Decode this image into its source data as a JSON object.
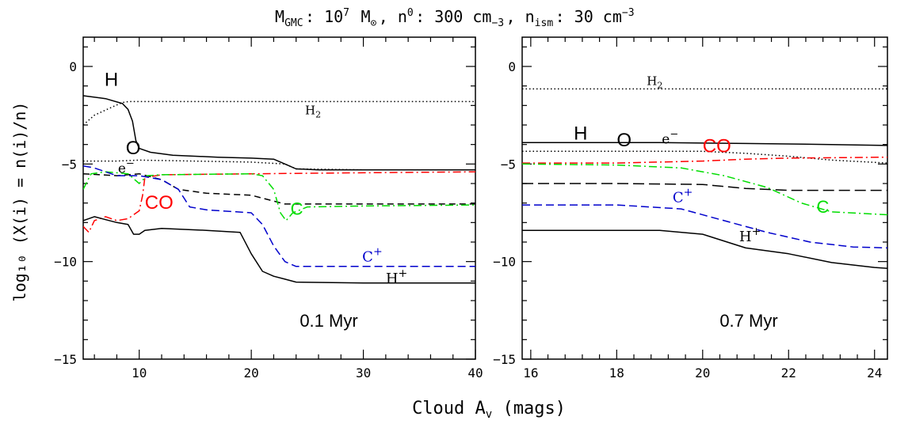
{
  "figure": {
    "title_parts": [
      "M",
      "GMC",
      ": 10",
      "7",
      " M",
      "⊙",
      ", n",
      "0",
      ": 300 cm",
      "−3",
      ", n",
      "ism",
      ": 30 cm",
      "−3"
    ],
    "ylabel": "log₁₀ (X(i) = n(i)/n)",
    "xlabel_parts": [
      "Cloud A",
      "v",
      " (mags)"
    ]
  },
  "colors": {
    "black": "#000000",
    "red": "#ff0000",
    "green": "#00dd00",
    "blue": "#0000cc"
  },
  "chart_data": [
    {
      "type": "line",
      "panel_label": "0.1 Myr",
      "xlim": [
        5,
        40
      ],
      "ylim": [
        -15,
        1.5
      ],
      "x_ticks": [
        10,
        20,
        30,
        40
      ],
      "y_ticks": [
        0,
        -5,
        -10,
        -15
      ],
      "x_tick_labels": [
        "10",
        "20",
        "30",
        "40"
      ],
      "y_tick_labels": [
        "0",
        "−5",
        "−10",
        "−15"
      ],
      "series": [
        {
          "name": "H",
          "color": "black",
          "dash": "solid",
          "points": [
            [
              5,
              -1.5
            ],
            [
              7,
              -1.65
            ],
            [
              8.5,
              -1.9
            ],
            [
              9,
              -2.2
            ],
            [
              9.4,
              -2.8
            ],
            [
              9.7,
              -3.8
            ],
            [
              10,
              -4.2
            ],
            [
              11,
              -4.4
            ],
            [
              13,
              -4.55
            ],
            [
              17,
              -4.65
            ],
            [
              20,
              -4.7
            ],
            [
              22,
              -4.75
            ],
            [
              23,
              -5.0
            ],
            [
              24,
              -5.25
            ],
            [
              26,
              -5.3
            ],
            [
              40,
              -5.3
            ]
          ]
        },
        {
          "name": "H₂",
          "color": "black",
          "dash": "1.5 3",
          "points": [
            [
              5,
              -3.0
            ],
            [
              6,
              -2.5
            ],
            [
              7.5,
              -2.1
            ],
            [
              8.5,
              -1.85
            ],
            [
              9,
              -1.8
            ],
            [
              12,
              -1.8
            ],
            [
              20,
              -1.8
            ],
            [
              30,
              -1.8
            ],
            [
              40,
              -1.8
            ]
          ]
        },
        {
          "name": "e⁻",
          "color": "black",
          "dash": "1.5 3",
          "points": [
            [
              5,
              -4.85
            ],
            [
              8,
              -4.85
            ],
            [
              10,
              -4.8
            ],
            [
              20,
              -4.9
            ],
            [
              23,
              -5.0
            ],
            [
              24,
              -5.25
            ],
            [
              30,
              -5.3
            ],
            [
              40,
              -5.3
            ]
          ]
        },
        {
          "name": "O",
          "color": "black",
          "dash": "8 5",
          "points": [
            [
              5,
              -5.5
            ],
            [
              8,
              -5.6
            ],
            [
              10,
              -5.5
            ],
            [
              12,
              -5.8
            ],
            [
              13.5,
              -6.3
            ],
            [
              16,
              -6.5
            ],
            [
              20,
              -6.6
            ],
            [
              22,
              -6.9
            ],
            [
              23,
              -7.05
            ],
            [
              26,
              -7.05
            ],
            [
              40,
              -7.05
            ]
          ]
        },
        {
          "name": "CO",
          "color": "red",
          "dash": "10 4 2 4",
          "points": [
            [
              5,
              -8.2
            ],
            [
              5.5,
              -8.5
            ],
            [
              6,
              -7.9
            ],
            [
              7,
              -7.7
            ],
            [
              8,
              -7.9
            ],
            [
              9,
              -7.8
            ],
            [
              10,
              -7.4
            ],
            [
              10.3,
              -6.6
            ],
            [
              10.5,
              -5.7
            ],
            [
              12,
              -5.55
            ],
            [
              20,
              -5.5
            ],
            [
              30,
              -5.45
            ],
            [
              40,
              -5.4
            ]
          ]
        },
        {
          "name": "C",
          "color": "green",
          "dash": "10 4 2 4",
          "points": [
            [
              5,
              -6.3
            ],
            [
              5.7,
              -5.5
            ],
            [
              7,
              -5.4
            ],
            [
              9,
              -5.5
            ],
            [
              10,
              -6.0
            ],
            [
              10.7,
              -5.6
            ],
            [
              12,
              -5.55
            ],
            [
              20,
              -5.5
            ],
            [
              21,
              -5.6
            ],
            [
              22,
              -6.3
            ],
            [
              22.6,
              -7.5
            ],
            [
              23.1,
              -7.9
            ],
            [
              23.7,
              -7.5
            ],
            [
              25,
              -7.2
            ],
            [
              30,
              -7.15
            ],
            [
              40,
              -7.1
            ]
          ]
        },
        {
          "name": "C⁺",
          "color": "blue",
          "dash": "10 5",
          "points": [
            [
              5,
              -5.1
            ],
            [
              6,
              -5.2
            ],
            [
              8,
              -5.6
            ],
            [
              10,
              -5.6
            ],
            [
              12,
              -5.8
            ],
            [
              13.5,
              -6.3
            ],
            [
              14.5,
              -7.2
            ],
            [
              16,
              -7.35
            ],
            [
              20,
              -7.5
            ],
            [
              21,
              -8.1
            ],
            [
              22,
              -9.2
            ],
            [
              23,
              -10.0
            ],
            [
              24,
              -10.25
            ],
            [
              30,
              -10.25
            ],
            [
              40,
              -10.25
            ]
          ]
        },
        {
          "name": "H⁺",
          "color": "black",
          "dash": "solid",
          "points": [
            [
              5,
              -7.9
            ],
            [
              6,
              -7.7
            ],
            [
              8,
              -8.0
            ],
            [
              9,
              -8.1
            ],
            [
              9.5,
              -8.6
            ],
            [
              10,
              -8.6
            ],
            [
              10.5,
              -8.4
            ],
            [
              12,
              -8.3
            ],
            [
              16,
              -8.4
            ],
            [
              19,
              -8.5
            ],
            [
              20,
              -9.6
            ],
            [
              21,
              -10.5
            ],
            [
              22,
              -10.75
            ],
            [
              23,
              -10.9
            ],
            [
              24,
              -11.05
            ],
            [
              30,
              -11.1
            ],
            [
              40,
              -11.1
            ]
          ]
        }
      ],
      "annotations": [
        {
          "text": "H",
          "x": 6.9,
          "y": -1.0,
          "color": "black",
          "size": 24,
          "font": "sans"
        },
        {
          "text": "H",
          "x": 24.8,
          "y": -2.45,
          "color": "black",
          "size": 15,
          "font": "serif",
          "sub": "2"
        },
        {
          "text": "O",
          "x": 8.8,
          "y": -4.5,
          "color": "black",
          "size": 24,
          "font": "sans"
        },
        {
          "text": "e",
          "x": 8.1,
          "y": -5.45,
          "color": "black",
          "size": 17,
          "font": "serif",
          "sup": "−"
        },
        {
          "text": "CO",
          "x": 10.5,
          "y": -7.3,
          "color": "red",
          "size": 24,
          "font": "sans"
        },
        {
          "text": "C",
          "x": 23.5,
          "y": -7.6,
          "color": "green",
          "size": 22,
          "font": "sans"
        },
        {
          "text": "C",
          "x": 29.9,
          "y": -10.0,
          "color": "blue",
          "size": 18,
          "font": "serif",
          "sup": "+"
        },
        {
          "text": "H",
          "x": 32.0,
          "y": -11.1,
          "color": "black",
          "size": 18,
          "font": "serif",
          "sup": "+"
        }
      ]
    },
    {
      "type": "line",
      "panel_label": "0.7 Myr",
      "xlim": [
        15.8,
        24.3
      ],
      "ylim": [
        -15,
        1.5
      ],
      "x_ticks": [
        16,
        18,
        20,
        22,
        24
      ],
      "y_ticks": [
        0,
        -5,
        -10,
        -15
      ],
      "x_tick_labels": [
        "16",
        "18",
        "20",
        "22",
        "24"
      ],
      "y_tick_labels": [
        "0",
        "−5",
        "−10",
        "−15"
      ],
      "series": [
        {
          "name": "H₂",
          "color": "black",
          "dash": "1.5 3",
          "points": [
            [
              15.8,
              -1.15
            ],
            [
              20,
              -1.15
            ],
            [
              24.3,
              -1.15
            ]
          ]
        },
        {
          "name": "H",
          "color": "black",
          "dash": "solid",
          "points": [
            [
              15.8,
              -3.9
            ],
            [
              19,
              -3.9
            ],
            [
              21,
              -3.95
            ],
            [
              23,
              -4.0
            ],
            [
              24.3,
              -4.05
            ]
          ]
        },
        {
          "name": "e⁻",
          "color": "black",
          "dash": "1.5 3",
          "points": [
            [
              15.8,
              -4.35
            ],
            [
              20,
              -4.35
            ],
            [
              21,
              -4.45
            ],
            [
              22,
              -4.6
            ],
            [
              23,
              -4.8
            ],
            [
              24.3,
              -4.95
            ]
          ]
        },
        {
          "name": "CO",
          "color": "red",
          "dash": "10 4 2 4",
          "points": [
            [
              15.8,
              -4.95
            ],
            [
              18,
              -4.95
            ],
            [
              20,
              -4.85
            ],
            [
              21,
              -4.75
            ],
            [
              22,
              -4.7
            ],
            [
              24.3,
              -4.65
            ]
          ]
        },
        {
          "name": "C",
          "color": "green",
          "dash": "10 4 2 4",
          "points": [
            [
              15.8,
              -5.0
            ],
            [
              18,
              -5.05
            ],
            [
              19.5,
              -5.2
            ],
            [
              20.5,
              -5.6
            ],
            [
              21.5,
              -6.2
            ],
            [
              22.3,
              -7.0
            ],
            [
              23,
              -7.45
            ],
            [
              24.3,
              -7.6
            ]
          ]
        },
        {
          "name": "O",
          "color": "black",
          "dash": "14 6",
          "points": [
            [
              15.8,
              -6.0
            ],
            [
              18,
              -6.0
            ],
            [
              20,
              -6.05
            ],
            [
              21,
              -6.25
            ],
            [
              22,
              -6.35
            ],
            [
              24.3,
              -6.35
            ]
          ]
        },
        {
          "name": "C⁺",
          "color": "blue",
          "dash": "10 5",
          "points": [
            [
              15.8,
              -7.1
            ],
            [
              18,
              -7.1
            ],
            [
              19.5,
              -7.3
            ],
            [
              20.5,
              -7.9
            ],
            [
              21.5,
              -8.5
            ],
            [
              22.5,
              -9.0
            ],
            [
              23.5,
              -9.25
            ],
            [
              24.3,
              -9.3
            ]
          ]
        },
        {
          "name": "H⁺",
          "color": "black",
          "dash": "solid",
          "points": [
            [
              15.8,
              -8.4
            ],
            [
              19,
              -8.4
            ],
            [
              20,
              -8.6
            ],
            [
              21,
              -9.3
            ],
            [
              22,
              -9.6
            ],
            [
              23,
              -10.05
            ],
            [
              24,
              -10.3
            ],
            [
              24.3,
              -10.35
            ]
          ]
        }
      ],
      "annotations": [
        {
          "text": "H",
          "x": 18.7,
          "y": -0.95,
          "color": "black",
          "size": 15,
          "font": "serif",
          "sub": "2"
        },
        {
          "text": "H",
          "x": 17.0,
          "y": -3.75,
          "color": "black",
          "size": 24,
          "font": "sans"
        },
        {
          "text": "O",
          "x": 18.0,
          "y": -4.1,
          "color": "black",
          "size": 24,
          "font": "sans"
        },
        {
          "text": "e",
          "x": 19.05,
          "y": -3.95,
          "color": "black",
          "size": 17,
          "font": "serif",
          "sup": "−"
        },
        {
          "text": "CO",
          "x": 20.0,
          "y": -4.4,
          "color": "red",
          "size": 24,
          "font": "sans"
        },
        {
          "text": "C",
          "x": 19.3,
          "y": -6.95,
          "color": "blue",
          "size": 18,
          "font": "serif",
          "sup": "+"
        },
        {
          "text": "C",
          "x": 22.65,
          "y": -7.5,
          "color": "green",
          "size": 22,
          "font": "sans"
        },
        {
          "text": "H",
          "x": 20.85,
          "y": -8.95,
          "color": "black",
          "size": 18,
          "font": "serif",
          "sup": "+"
        }
      ]
    }
  ]
}
